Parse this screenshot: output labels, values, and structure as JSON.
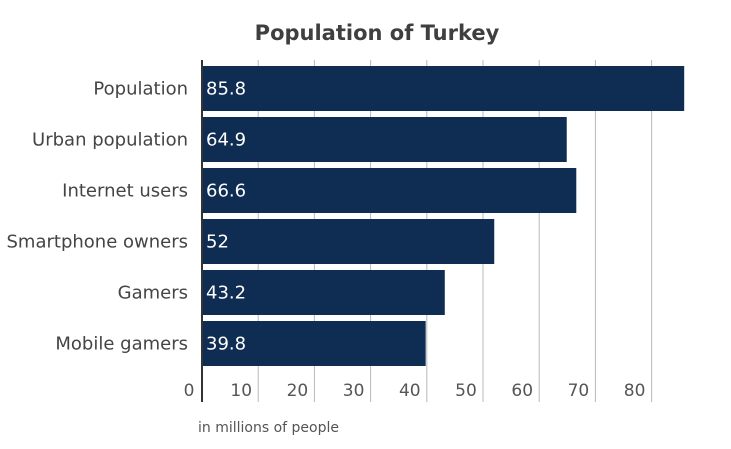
{
  "chart_data": {
    "type": "bar",
    "orientation": "horizontal",
    "title": "Population of  Turkey",
    "categories": [
      "Population",
      "Urban population",
      "Internet users",
      "Smartphone owners",
      "Gamers",
      "Mobile gamers"
    ],
    "values": [
      85.8,
      64.9,
      66.6,
      52,
      43.2,
      39.8
    ],
    "data_labels": [
      "85.8",
      "64.9",
      "66.6",
      "52",
      "43.2",
      "39.8"
    ],
    "xticks": [
      0,
      10,
      20,
      30,
      40,
      50,
      60,
      70,
      80
    ],
    "xlim": [
      0,
      90
    ],
    "xlabel": "in millions of people",
    "grid": true,
    "legend": "none",
    "colors": {
      "bar": "#0f2d52",
      "grid": "#b8b8b8",
      "axis": "#333333"
    }
  }
}
